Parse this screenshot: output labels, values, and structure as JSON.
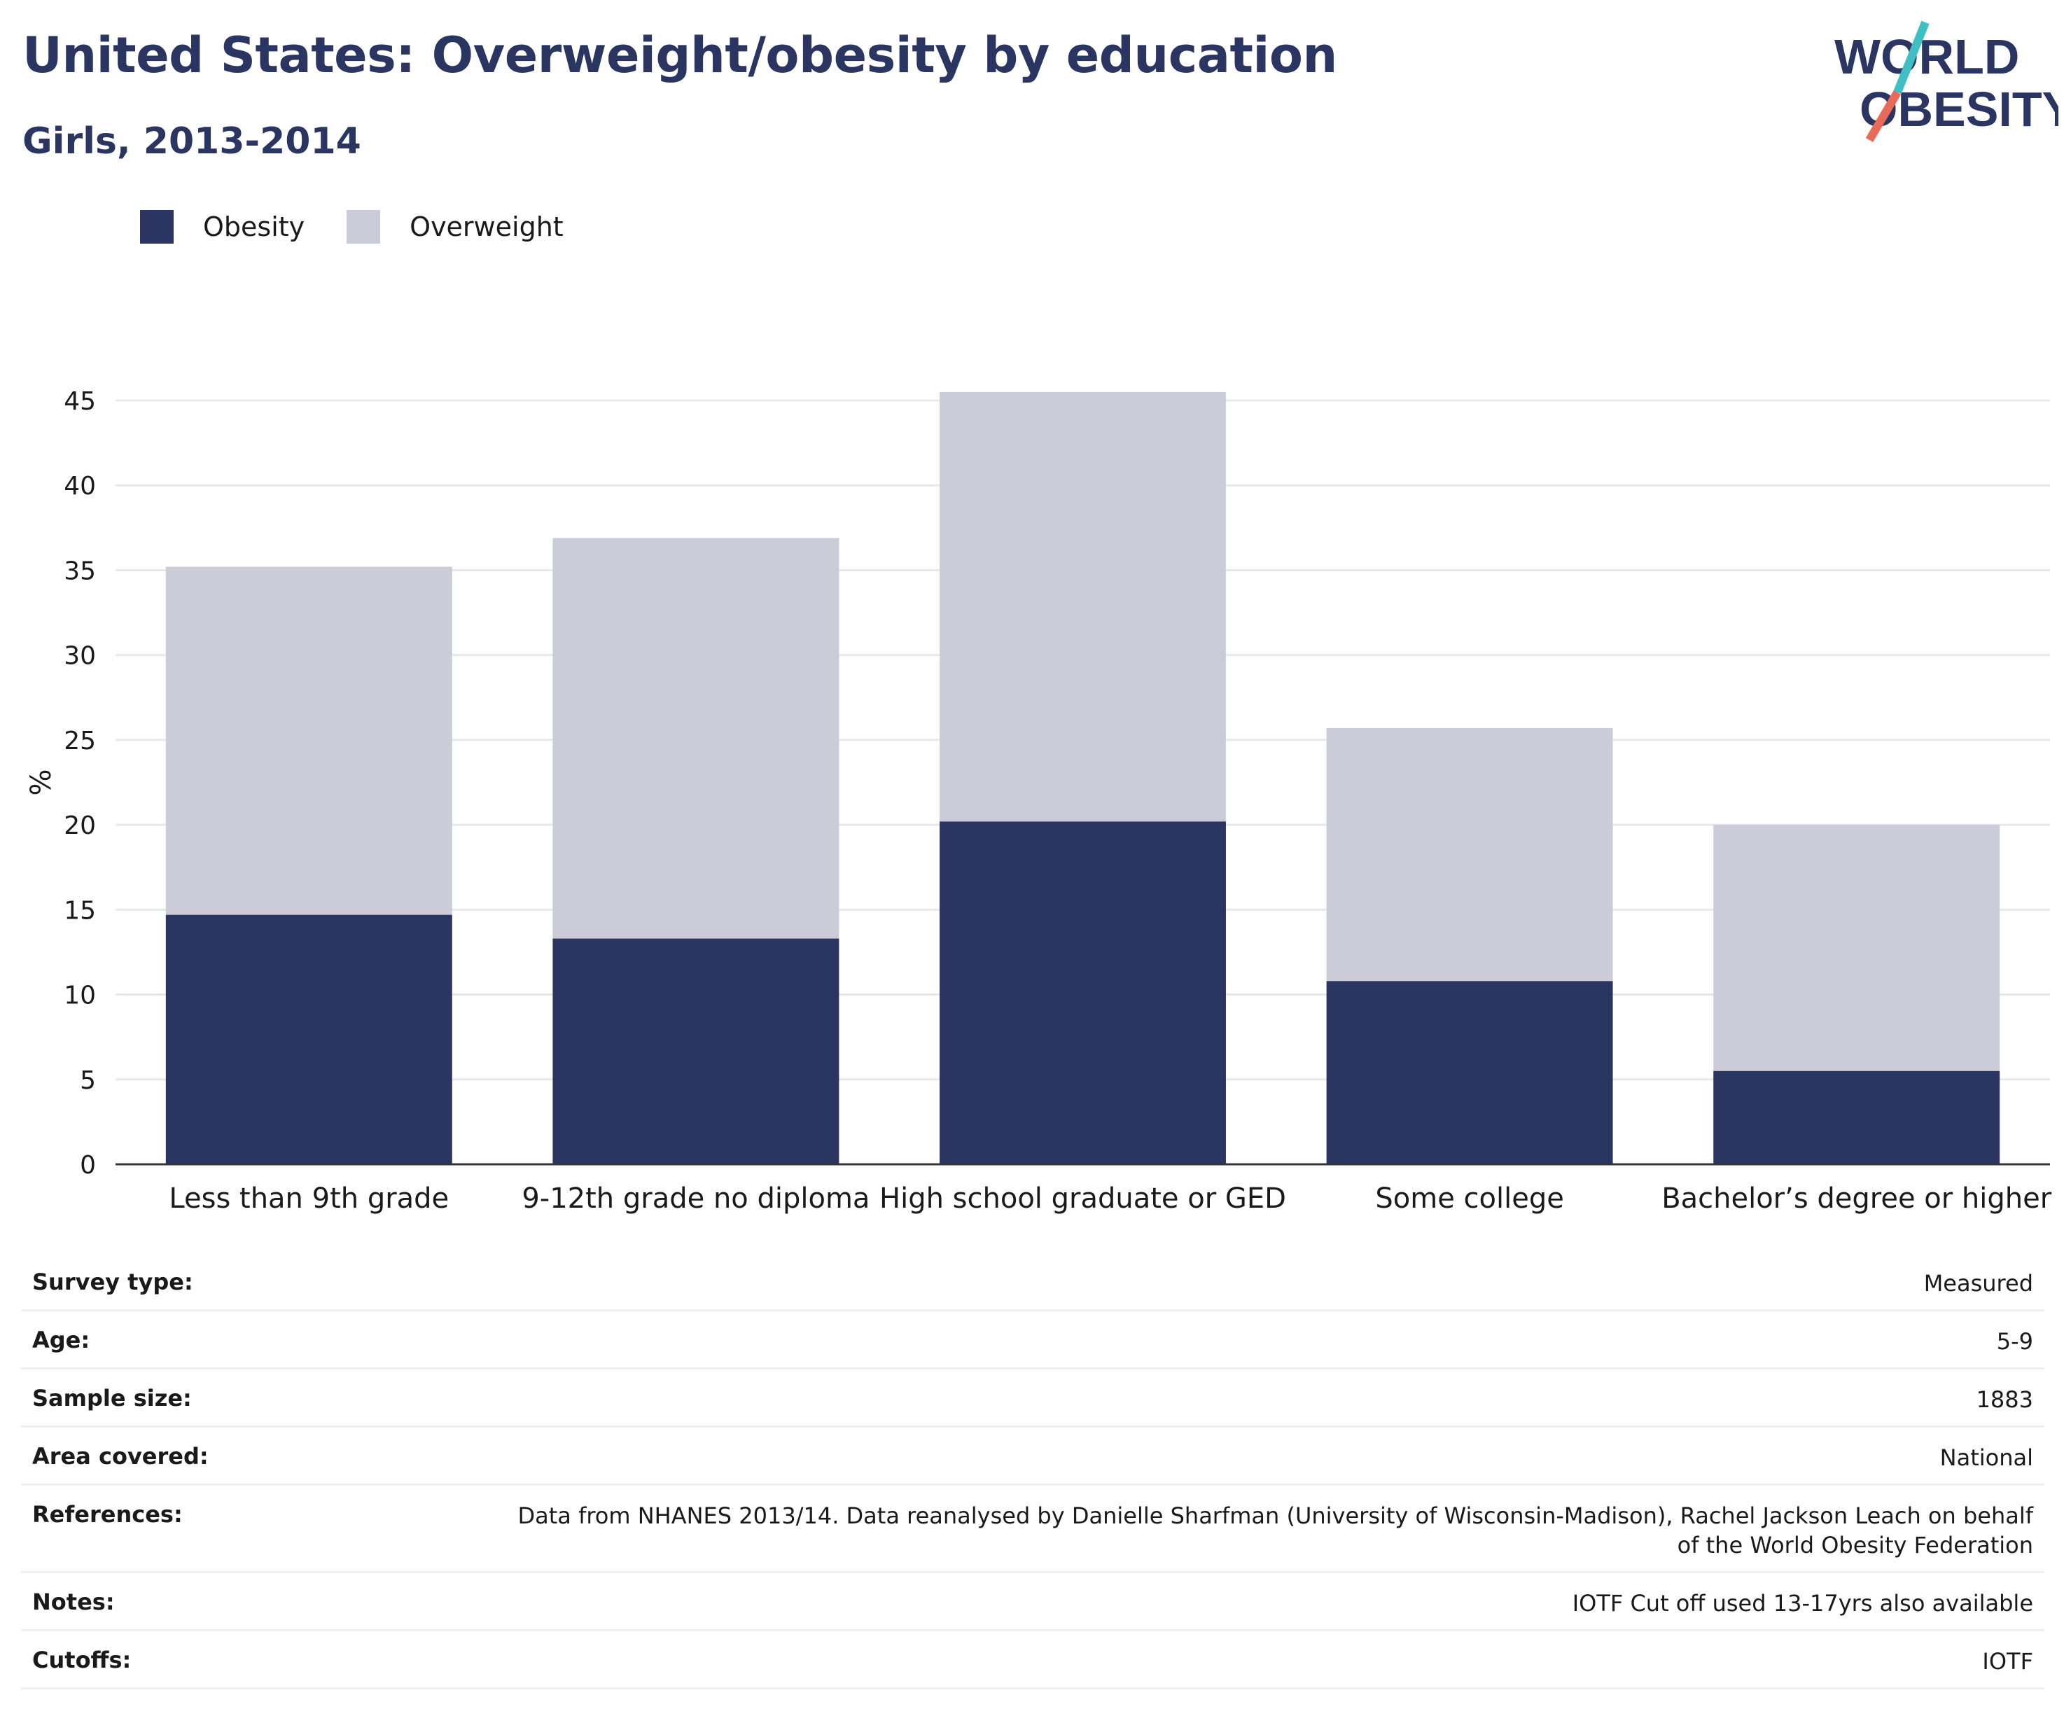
{
  "header": {
    "title": "United States: Overweight/obesity by education",
    "subtitle": "Girls, 2013-2014"
  },
  "logo": {
    "line1": "WORLD",
    "line2": "OBESITY",
    "text_color": "#2a3561",
    "slash_color_top": "#3fbfc3",
    "slash_color_bottom": "#e86a58"
  },
  "legend": {
    "items": [
      {
        "label": "Obesity",
        "color": "#2a3561"
      },
      {
        "label": "Overweight",
        "color": "#cbccd8"
      }
    ]
  },
  "chart_data": {
    "type": "bar",
    "stacked": true,
    "categories": [
      "Less than 9th grade",
      "9-12th grade no diploma",
      "High school graduate or GED",
      "Some college",
      "Bachelor’s degree or higher"
    ],
    "series": [
      {
        "name": "Obesity",
        "color": "#2a3561",
        "values": [
          14.7,
          13.3,
          20.2,
          10.8,
          5.5
        ]
      },
      {
        "name": "Overweight",
        "color": "#cbccd8",
        "values": [
          20.5,
          23.6,
          25.3,
          14.9,
          14.5
        ]
      }
    ],
    "ylabel": "%",
    "xlabel": "",
    "ylim": [
      0,
      45
    ],
    "yticks": [
      0,
      5,
      10,
      15,
      20,
      25,
      30,
      35,
      40,
      45
    ],
    "grid": true
  },
  "info": {
    "rows": [
      {
        "label": "Survey type:",
        "value": "Measured"
      },
      {
        "label": "Age:",
        "value": "5-9"
      },
      {
        "label": "Sample size:",
        "value": "1883"
      },
      {
        "label": "Area covered:",
        "value": "National"
      },
      {
        "label": "References:",
        "value": "Data from NHANES 2013/14. Data reanalysed by Danielle Sharfman (University of Wisconsin-Madison), Rachel Jackson Leach on behalf of the World Obesity Federation"
      },
      {
        "label": "Notes:",
        "value": "IOTF Cut off used 13-17yrs also available"
      },
      {
        "label": "Cutoffs:",
        "value": "IOTF"
      }
    ]
  }
}
